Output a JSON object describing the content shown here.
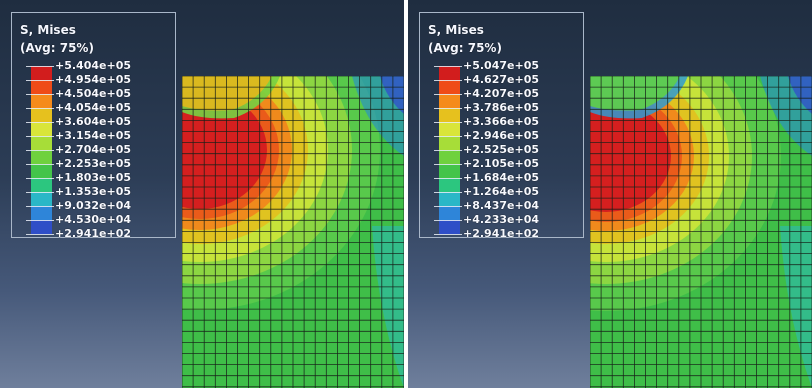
{
  "panels": [
    {
      "id": "left",
      "legend": {
        "title": "S, Mises",
        "subtitle": "(Avg: 75%)",
        "values": [
          "+5.404e+05",
          "+4.954e+05",
          "+4.504e+05",
          "+4.054e+05",
          "+3.604e+05",
          "+3.154e+05",
          "+2.704e+05",
          "+2.253e+05",
          "+1.803e+05",
          "+1.353e+05",
          "+9.032e+04",
          "+4.530e+04",
          "+2.941e+02"
        ]
      }
    },
    {
      "id": "right",
      "legend": {
        "title": "S, Mises",
        "subtitle": "(Avg: 75%)",
        "values": [
          "+5.047e+05",
          "+4.627e+05",
          "+4.207e+05",
          "+3.786e+05",
          "+3.366e+05",
          "+2.946e+05",
          "+2.525e+05",
          "+2.105e+05",
          "+1.684e+05",
          "+1.264e+05",
          "+8.437e+04",
          "+4.233e+04",
          "+2.941e+02"
        ]
      }
    }
  ],
  "colors": {
    "scale": [
      "#d21d1d",
      "#ef4b18",
      "#f58b1b",
      "#e6c11e",
      "#d9e53a",
      "#a7dd38",
      "#6fd13e",
      "#43c44a",
      "#2cc67f",
      "#2ab7c7",
      "#2e85d9",
      "#2f4ec7"
    ],
    "background_top": "#1f2d40",
    "background_bottom": "#6f7f9c",
    "mesh_line": "#162018"
  }
}
